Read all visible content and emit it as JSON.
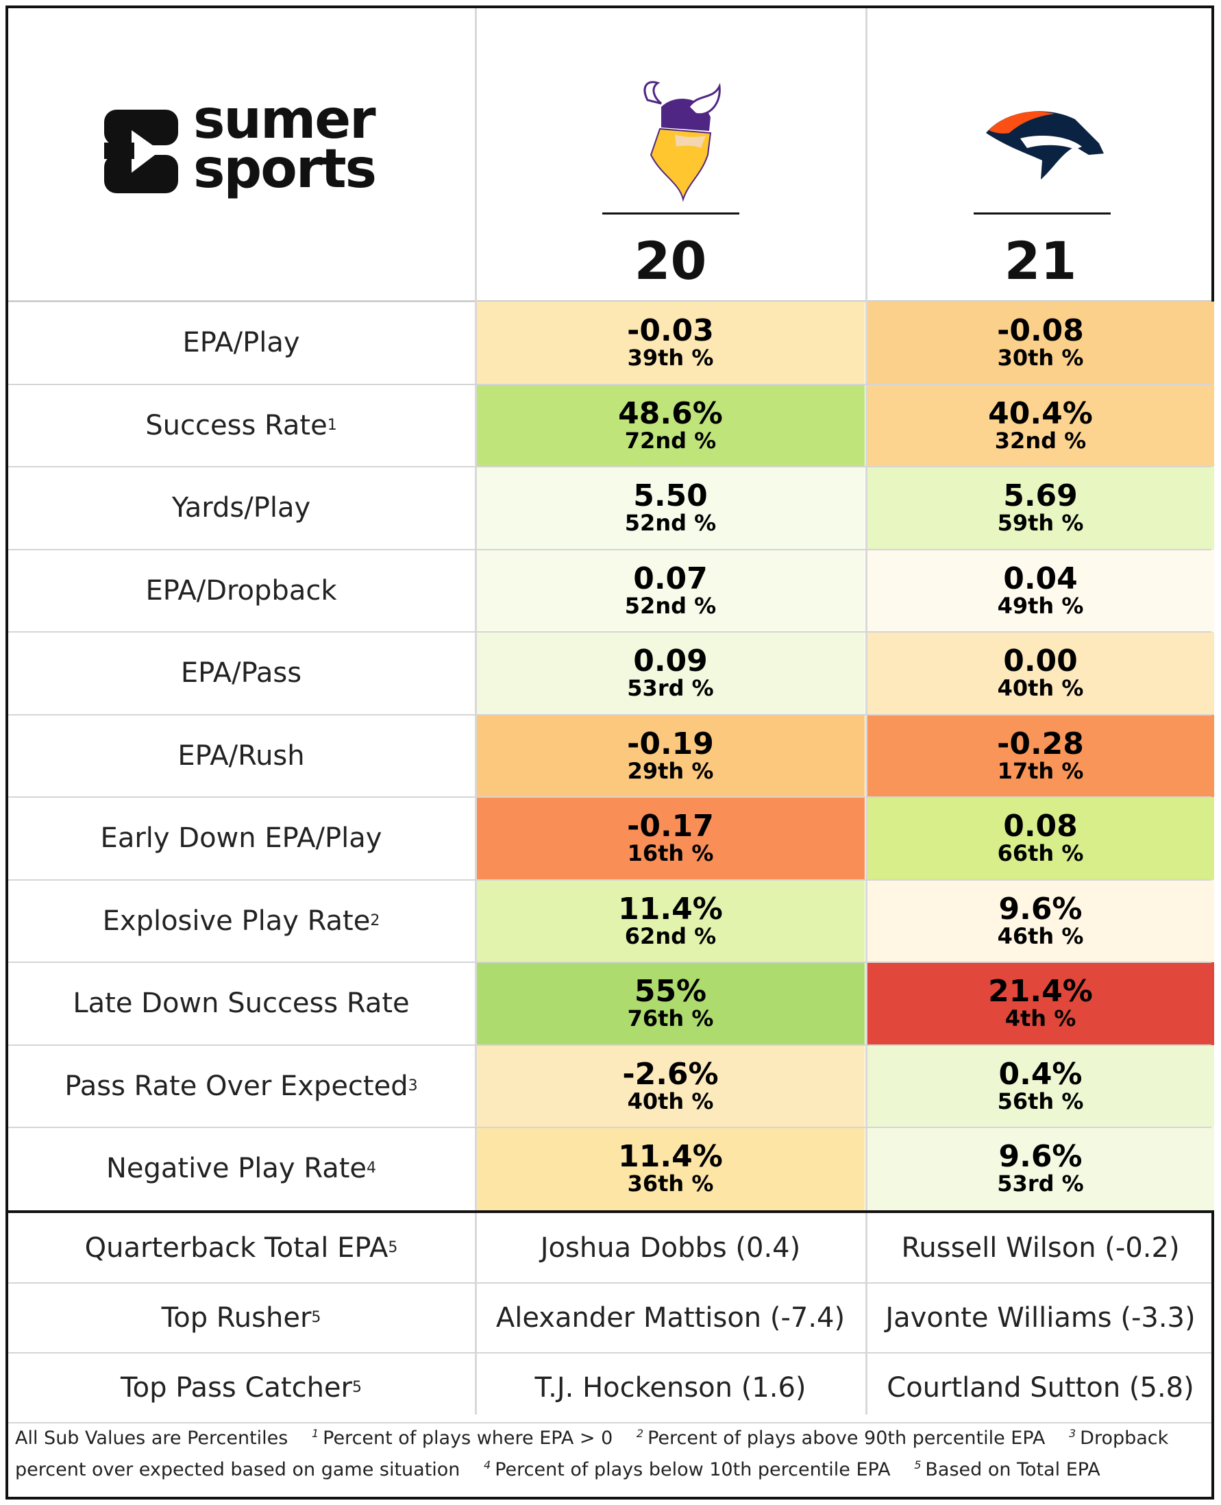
{
  "brand": {
    "name_line1": "sumer",
    "name_line2": "sports",
    "mark": "sumer-sports-logo-icon"
  },
  "teams": [
    {
      "id": "vikings",
      "logo_icon": "vikings-helmet-logo-icon",
      "score": "20"
    },
    {
      "id": "broncos",
      "logo_icon": "broncos-horse-logo-icon",
      "score": "21"
    }
  ],
  "metrics": [
    {
      "label": "EPA/Play",
      "footnote": "",
      "team1": {
        "value": "-0.03",
        "pct": "39th %",
        "color": "#fde7b3"
      },
      "team2": {
        "value": "-0.08",
        "pct": "30th %",
        "color": "#fbd08a"
      }
    },
    {
      "label": "Success Rate",
      "footnote": "1",
      "team1": {
        "value": "48.6%",
        "pct": "72nd %",
        "color": "#bfe47a"
      },
      "team2": {
        "value": "40.4%",
        "pct": "32nd %",
        "color": "#fcd48f"
      }
    },
    {
      "label": "Yards/Play",
      "footnote": "",
      "team1": {
        "value": "5.50",
        "pct": "52nd %",
        "color": "#f7fbe9"
      },
      "team2": {
        "value": "5.69",
        "pct": "59th %",
        "color": "#e8f6c1"
      }
    },
    {
      "label": "EPA/Dropback",
      "footnote": "",
      "team1": {
        "value": "0.07",
        "pct": "52nd %",
        "color": "#f8fbe9"
      },
      "team2": {
        "value": "0.04",
        "pct": "49th %",
        "color": "#fefaee"
      }
    },
    {
      "label": "EPA/Pass",
      "footnote": "",
      "team1": {
        "value": "0.09",
        "pct": "53rd %",
        "color": "#f3f9df"
      },
      "team2": {
        "value": "0.00",
        "pct": "40th %",
        "color": "#fde9bc"
      }
    },
    {
      "label": "EPA/Rush",
      "footnote": "",
      "team1": {
        "value": "-0.19",
        "pct": "29th %",
        "color": "#fbc87e"
      },
      "team2": {
        "value": "-0.28",
        "pct": "17th %",
        "color": "#fa9559"
      }
    },
    {
      "label": "Early Down EPA/Play",
      "footnote": "",
      "team1": {
        "value": "-0.17",
        "pct": "16th %",
        "color": "#f98e57"
      },
      "team2": {
        "value": "0.08",
        "pct": "66th %",
        "color": "#d8ee8b"
      }
    },
    {
      "label": "Explosive Play Rate",
      "footnote": "2",
      "team1": {
        "value": "11.4%",
        "pct": "62nd %",
        "color": "#e2f3ad"
      },
      "team2": {
        "value": "9.6%",
        "pct": "46th %",
        "color": "#fff7e3"
      }
    },
    {
      "label": "Late Down Success Rate",
      "footnote": "",
      "team1": {
        "value": "55%",
        "pct": "76th %",
        "color": "#aedb6d"
      },
      "team2": {
        "value": "21.4%",
        "pct": "4th %",
        "color": "#e1473a"
      }
    },
    {
      "label": "Pass Rate Over Expected",
      "footnote": "3",
      "team1": {
        "value": "-2.6%",
        "pct": "40th %",
        "color": "#fdeabc"
      },
      "team2": {
        "value": "0.4%",
        "pct": "56th %",
        "color": "#edf8d2"
      }
    },
    {
      "label": "Negative Play Rate",
      "footnote": "4",
      "team1": {
        "value": "11.4%",
        "pct": "36th %",
        "color": "#fde5a6"
      },
      "team2": {
        "value": "9.6%",
        "pct": "53rd %",
        "color": "#f4f9e2"
      }
    }
  ],
  "players": [
    {
      "label": "Quarterback Total EPA",
      "footnote": "5",
      "team1": "Joshua Dobbs (0.4)",
      "team2": "Russell Wilson (-0.2)"
    },
    {
      "label": "Top Rusher",
      "footnote": "5",
      "team1": "Alexander Mattison (-7.4)",
      "team2": "Javonte Williams (-3.3)"
    },
    {
      "label": "Top Pass Catcher",
      "footnote": "5",
      "team1": "T.J. Hockenson (1.6)",
      "team2": "Courtland Sutton (5.8)"
    }
  ],
  "footer": {
    "intro": "All Sub Values are Percentiles",
    "notes": [
      {
        "num": "1",
        "text": "Percent of plays where EPA > 0"
      },
      {
        "num": "2",
        "text": "Percent of plays above 90th percentile EPA"
      },
      {
        "num": "3",
        "text": "Dropback percent over expected based on game situation"
      },
      {
        "num": "4",
        "text": "Percent of plays below 10th percentile EPA"
      },
      {
        "num": "5",
        "text": "Based on Total EPA"
      }
    ]
  }
}
